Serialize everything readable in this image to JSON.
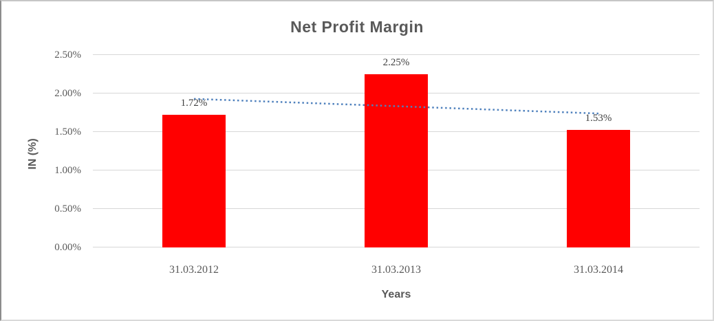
{
  "chart_data": {
    "type": "bar",
    "title": "Net Profit Margin",
    "xlabel": "Years",
    "ylabel": "IN (%)",
    "categories": [
      "31.03.2012",
      "31.03.2013",
      "31.03.2014"
    ],
    "values": [
      1.72,
      2.25,
      1.53
    ],
    "data_labels": [
      "1.72%",
      "2.25%",
      "1.53%"
    ],
    "yticks": [
      {
        "value": 0.0,
        "label": "0.00%"
      },
      {
        "value": 0.5,
        "label": "0.50%"
      },
      {
        "value": 1.0,
        "label": "1.00%"
      },
      {
        "value": 1.5,
        "label": "1.50%"
      },
      {
        "value": 2.0,
        "label": "2.00%"
      },
      {
        "value": 2.5,
        "label": "2.50%"
      }
    ],
    "ylim": [
      0,
      2.5
    ],
    "grid": true,
    "legend_position": "none",
    "bar_color": "#FF0000",
    "gridline_color": "#D7D7D7",
    "title_color": "#595959",
    "tick_label_color": "#595959",
    "data_label_color": "#404040",
    "trendline": {
      "type": "linear",
      "style": "dotted",
      "color": "#4F81BD",
      "start_value": 1.93,
      "end_value": 1.74
    }
  }
}
